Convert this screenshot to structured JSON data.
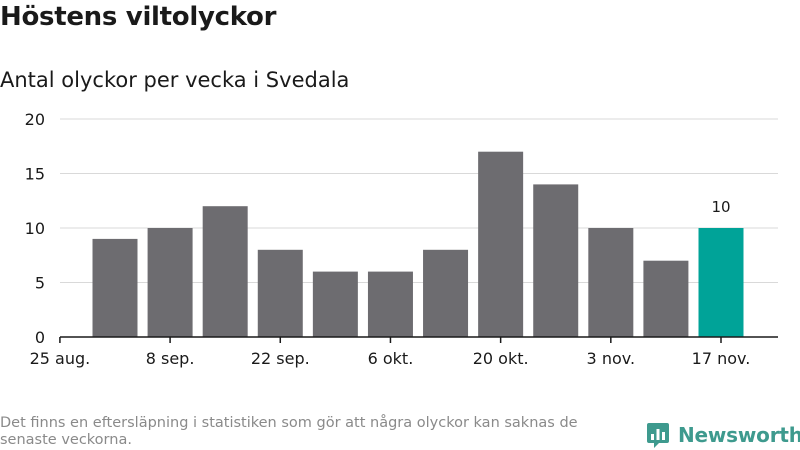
{
  "header": {
    "title": "Höstens viltolyckor",
    "subtitle": "Antal olyckor per vecka i Svedala"
  },
  "footer": {
    "note": "Det finns en eftersläpning i statistiken som gör att några olyckor kan saknas de senaste veckorna.",
    "brand_name": "Newsworthy",
    "brand_icon": "bar-chart-logo-icon",
    "brand_color": "#3e9a8e"
  },
  "chart_data": {
    "type": "bar",
    "title": "Höstens viltolyckor",
    "subtitle": "Antal olyckor per vecka i Svedala",
    "xlabel": "",
    "ylabel": "",
    "ylim": [
      0,
      20
    ],
    "yticks": [
      "0",
      "5",
      "10",
      "15",
      "20"
    ],
    "xtick_labels": [
      "25 aug.",
      "8 sep.",
      "22 sep.",
      "6 okt.",
      "20 okt.",
      "3 nov.",
      "17 nov."
    ],
    "values": [
      9,
      10,
      12,
      8,
      6,
      6,
      8,
      17,
      14,
      10,
      7,
      10
    ],
    "bar_color": "#6d6c70",
    "highlight_color": "#00a398",
    "highlight_index": 11,
    "highlight_label": "10",
    "grid": true
  }
}
